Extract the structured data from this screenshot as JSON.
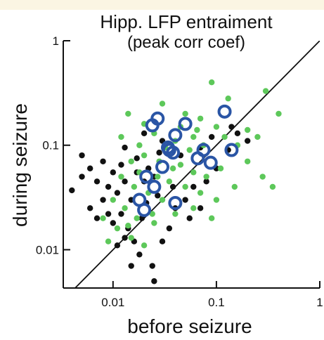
{
  "chart_data": {
    "type": "scatter",
    "title": "Hipp. LFP entraiment",
    "subtitle": "(peak corr coef)",
    "x_label": "before seizure",
    "y_label": "during seizure",
    "x_scale": "log",
    "y_scale": "log",
    "xlim": [
      0.0033,
      1
    ],
    "ylim": [
      0.0043,
      1
    ],
    "xticks": [
      0.01,
      0.1,
      1
    ],
    "yticks": [
      0.01,
      0.1,
      1
    ],
    "diagonal": true,
    "series": [
      {
        "color": "#111111",
        "marker": "dot",
        "x": [
          0.005,
          0.004,
          0.006,
          0.007,
          0.008,
          0.009,
          0.01,
          0.011,
          0.012,
          0.013,
          0.015,
          0.017,
          0.02,
          0.022,
          0.025,
          0.008,
          0.006,
          0.007,
          0.009,
          0.01,
          0.012,
          0.014,
          0.016,
          0.018,
          0.015,
          0.024,
          0.025,
          0.03,
          0.035,
          0.04,
          0.05,
          0.06,
          0.08,
          0.1,
          0.13,
          0.16,
          0.2,
          0.14,
          0.09,
          0.07,
          0.045,
          0.03,
          0.02,
          0.013,
          0.017,
          0.028,
          0.038,
          0.055,
          0.07,
          0.011,
          0.013,
          0.019,
          0.005,
          0.021,
          0.027
        ],
        "values": [
          0.08,
          0.037,
          0.06,
          0.045,
          0.07,
          0.04,
          0.055,
          0.035,
          0.065,
          0.045,
          0.03,
          0.055,
          0.045,
          0.06,
          0.05,
          0.03,
          0.025,
          0.02,
          0.022,
          0.018,
          0.022,
          0.016,
          0.012,
          0.009,
          0.007,
          0.007,
          0.005,
          0.012,
          0.016,
          0.025,
          0.03,
          0.04,
          0.045,
          0.06,
          0.09,
          0.13,
          0.11,
          0.15,
          0.12,
          0.095,
          0.08,
          0.11,
          0.13,
          0.095,
          0.075,
          0.085,
          0.04,
          0.02,
          0.025,
          0.011,
          0.013,
          0.02,
          0.05,
          0.028,
          0.033
        ]
      },
      {
        "color": "#5dc85a",
        "marker": "dot",
        "x": [
          0.014,
          0.02,
          0.03,
          0.05,
          0.07,
          0.1,
          0.13,
          0.3,
          0.4,
          0.09,
          0.06,
          0.04,
          0.025,
          0.018,
          0.012,
          0.015,
          0.02,
          0.028,
          0.045,
          0.06,
          0.08,
          0.11,
          0.16,
          0.2,
          0.25,
          0.035,
          0.05,
          0.07,
          0.1,
          0.15,
          0.012,
          0.016,
          0.022,
          0.03,
          0.04,
          0.06,
          0.09,
          0.013,
          0.017,
          0.025,
          0.01,
          0.008,
          0.011,
          0.015,
          0.02,
          0.045,
          0.055,
          0.032,
          0.065,
          0.2,
          0.28,
          0.35,
          0.12,
          0.018,
          0.027,
          0.014,
          0.009,
          0.038,
          0.075,
          0.024
        ],
        "values": [
          0.2,
          0.16,
          0.25,
          0.2,
          0.18,
          0.15,
          0.28,
          0.33,
          0.2,
          0.4,
          0.12,
          0.11,
          0.13,
          0.1,
          0.12,
          0.07,
          0.08,
          0.07,
          0.065,
          0.055,
          0.05,
          0.06,
          0.1,
          0.07,
          0.12,
          0.045,
          0.04,
          0.035,
          0.03,
          0.04,
          0.05,
          0.04,
          0.035,
          0.03,
          0.022,
          0.025,
          0.02,
          0.025,
          0.02,
          0.018,
          0.03,
          0.02,
          0.016,
          0.013,
          0.011,
          0.15,
          0.09,
          0.095,
          0.14,
          0.14,
          0.05,
          0.04,
          0.12,
          0.055,
          0.05,
          0.017,
          0.012,
          0.06,
          0.1,
          0.022
        ]
      },
      {
        "color": "#2a55a5",
        "marker": "ring",
        "x": [
          0.027,
          0.024,
          0.04,
          0.05,
          0.12,
          0.035,
          0.038,
          0.066,
          0.075,
          0.088,
          0.14,
          0.03,
          0.021,
          0.025,
          0.018,
          0.02,
          0.04,
          0.034
        ],
        "values": [
          0.18,
          0.155,
          0.125,
          0.16,
          0.21,
          0.09,
          0.085,
          0.075,
          0.09,
          0.068,
          0.09,
          0.062,
          0.05,
          0.04,
          0.03,
          0.024,
          0.028,
          0.095
        ]
      }
    ]
  }
}
